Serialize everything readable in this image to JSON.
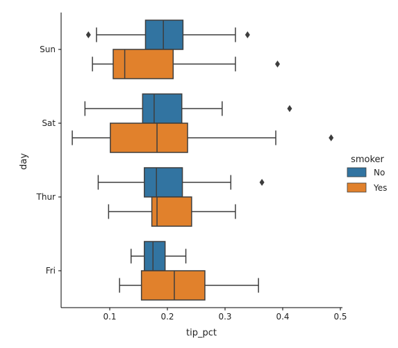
{
  "chart_data": {
    "type": "boxplot",
    "orientation": "horizontal",
    "title": "",
    "xlabel": "tip_pct",
    "ylabel": "day",
    "xlim": [
      0.015,
      0.5
    ],
    "xticks": [
      0.1,
      0.2,
      0.3,
      0.4,
      0.5
    ],
    "xtick_labels": [
      "0.1",
      "0.2",
      "0.3",
      "0.4",
      "0.5"
    ],
    "categories": [
      "Sun",
      "Sat",
      "Thur",
      "Fri"
    ],
    "grid": false,
    "legend": {
      "title": "smoker",
      "placement": "right",
      "entries": [
        {
          "label": "No",
          "color": "#3274a1"
        },
        {
          "label": "Yes",
          "color": "#e1812c"
        }
      ]
    },
    "series": [
      {
        "name": "No",
        "color": "#3274a1",
        "boxes": [
          {
            "category": "Sun",
            "whisker_low": 0.077,
            "q1": 0.162,
            "median": 0.193,
            "q3": 0.227,
            "whisker_high": 0.318,
            "outliers": [
              0.063,
              0.339
            ]
          },
          {
            "category": "Sat",
            "whisker_low": 0.057,
            "q1": 0.157,
            "median": 0.177,
            "q3": 0.225,
            "whisker_high": 0.295,
            "outliers": [
              0.412
            ]
          },
          {
            "category": "Thur",
            "whisker_low": 0.08,
            "q1": 0.16,
            "median": 0.181,
            "q3": 0.226,
            "whisker_high": 0.31,
            "outliers": [
              0.364
            ]
          },
          {
            "category": "Fri",
            "whisker_low": 0.137,
            "q1": 0.16,
            "median": 0.175,
            "q3": 0.196,
            "whisker_high": 0.232,
            "outliers": []
          }
        ]
      },
      {
        "name": "Yes",
        "color": "#e1812c",
        "boxes": [
          {
            "category": "Sun",
            "whisker_low": 0.07,
            "q1": 0.106,
            "median": 0.126,
            "q3": 0.21,
            "whisker_high": 0.318,
            "outliers": [
              0.391
            ]
          },
          {
            "category": "Sat",
            "whisker_low": 0.035,
            "q1": 0.101,
            "median": 0.182,
            "q3": 0.235,
            "whisker_high": 0.388,
            "outliers": [
              0.484
            ]
          },
          {
            "category": "Thur",
            "whisker_low": 0.098,
            "q1": 0.173,
            "median": 0.182,
            "q3": 0.242,
            "whisker_high": 0.318,
            "outliers": []
          },
          {
            "category": "Fri",
            "whisker_low": 0.117,
            "q1": 0.155,
            "median": 0.212,
            "q3": 0.265,
            "whisker_high": 0.358,
            "outliers": []
          }
        ]
      }
    ]
  }
}
